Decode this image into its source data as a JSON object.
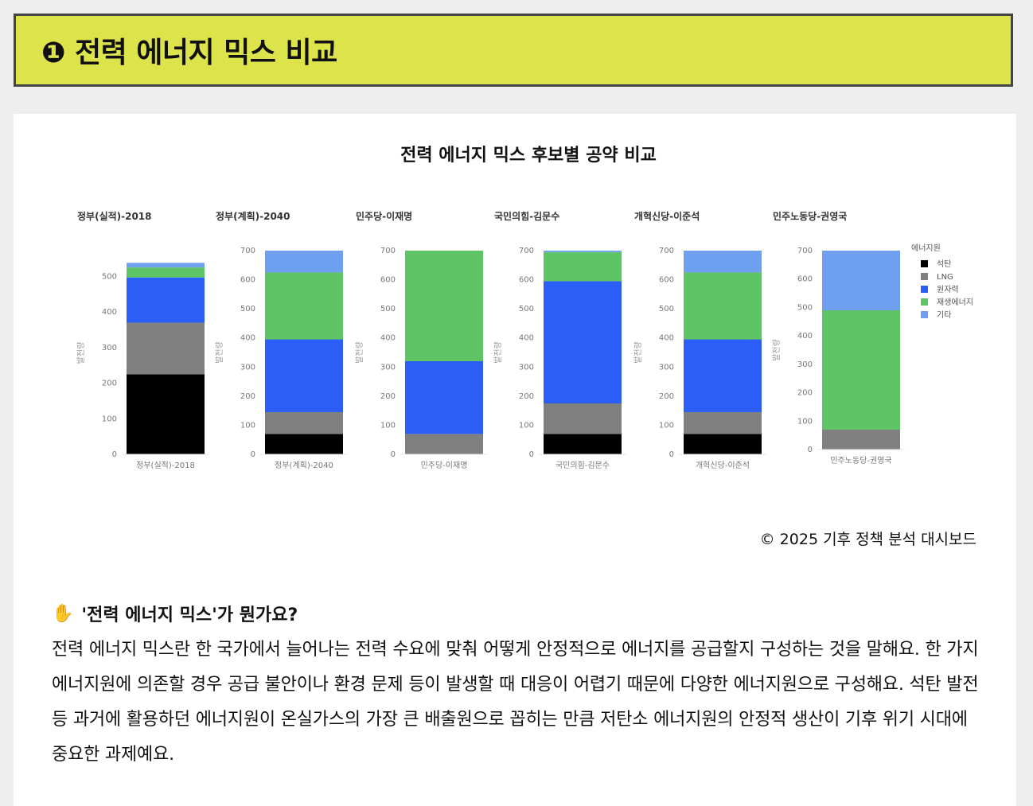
{
  "header": {
    "title": "❶ 전력 에너지 믹스 비교"
  },
  "chart_title": "전력 에너지 믹스 후보별 공약 비교",
  "colors": {
    "석탄": "#000000",
    "LNG": "#808080",
    "원자력": "#2a5ef7",
    "재생에너지": "#5ec466",
    "기타": "#6fa0f0",
    "header_bg": "#dde34a"
  },
  "chart_data": [
    {
      "type": "bar",
      "stacked": true,
      "title": "정부(실적)-2018",
      "categories": [
        "정부(실적)-2018"
      ],
      "ylabel": "발전량",
      "yticks": [
        0,
        100,
        200,
        300,
        400,
        500
      ],
      "ylim": [
        0,
        570
      ],
      "series": [
        {
          "name": "석탄",
          "values": [
            225
          ]
        },
        {
          "name": "LNG",
          "values": [
            145
          ]
        },
        {
          "name": "원자력",
          "values": [
            127
          ]
        },
        {
          "name": "재생에너지",
          "values": [
            28
          ]
        },
        {
          "name": "기타",
          "values": [
            13
          ]
        }
      ]
    },
    {
      "type": "bar",
      "stacked": true,
      "title": "정부(계획)-2040",
      "categories": [
        "정부(계획)-2040"
      ],
      "ylabel": "발전량",
      "yticks": [
        0,
        100,
        200,
        300,
        400,
        500,
        600,
        700
      ],
      "ylim": [
        0,
        700
      ],
      "series": [
        {
          "name": "석탄",
          "values": [
            70
          ]
        },
        {
          "name": "LNG",
          "values": [
            75
          ]
        },
        {
          "name": "원자력",
          "values": [
            250
          ]
        },
        {
          "name": "재생에너지",
          "values": [
            230
          ]
        },
        {
          "name": "기타",
          "values": [
            75
          ]
        }
      ]
    },
    {
      "type": "bar",
      "stacked": true,
      "title": "민주당-이재명",
      "categories": [
        "민주당-이재명"
      ],
      "ylabel": "발전량",
      "yticks": [
        0,
        100,
        200,
        300,
        400,
        500,
        600,
        700
      ],
      "ylim": [
        0,
        700
      ],
      "series": [
        {
          "name": "석탄",
          "values": [
            0
          ]
        },
        {
          "name": "LNG",
          "values": [
            70
          ]
        },
        {
          "name": "원자력",
          "values": [
            250
          ]
        },
        {
          "name": "재생에너지",
          "values": [
            380
          ]
        },
        {
          "name": "기타",
          "values": [
            0
          ]
        }
      ]
    },
    {
      "type": "bar",
      "stacked": true,
      "title": "국민의힘-김문수",
      "categories": [
        "국민의힘-김문수"
      ],
      "ylabel": "발전량",
      "yticks": [
        0,
        100,
        200,
        300,
        400,
        500,
        600,
        700
      ],
      "ylim": [
        0,
        700
      ],
      "series": [
        {
          "name": "석탄",
          "values": [
            70
          ]
        },
        {
          "name": "LNG",
          "values": [
            105
          ]
        },
        {
          "name": "원자력",
          "values": [
            420
          ]
        },
        {
          "name": "재생에너지",
          "values": [
            100
          ]
        },
        {
          "name": "기타",
          "values": [
            5
          ]
        }
      ]
    },
    {
      "type": "bar",
      "stacked": true,
      "title": "개혁신당-이준석",
      "categories": [
        "개혁신당-이준석"
      ],
      "ylabel": "발전량",
      "yticks": [
        0,
        100,
        200,
        300,
        400,
        500,
        600,
        700
      ],
      "ylim": [
        0,
        700
      ],
      "series": [
        {
          "name": "석탄",
          "values": [
            70
          ]
        },
        {
          "name": "LNG",
          "values": [
            75
          ]
        },
        {
          "name": "원자력",
          "values": [
            250
          ]
        },
        {
          "name": "재생에너지",
          "values": [
            230
          ]
        },
        {
          "name": "기타",
          "values": [
            75
          ]
        }
      ]
    },
    {
      "type": "bar",
      "stacked": true,
      "title": "민주노동당-권영국",
      "categories": [
        "민주노동당-권영국"
      ],
      "ylabel": "발전량",
      "yticks": [
        0,
        100,
        200,
        300,
        400,
        500,
        600,
        700
      ],
      "ylim": [
        0,
        700
      ],
      "series": [
        {
          "name": "석탄",
          "values": [
            0
          ]
        },
        {
          "name": "LNG",
          "values": [
            70
          ]
        },
        {
          "name": "원자력",
          "values": [
            0
          ]
        },
        {
          "name": "재생에너지",
          "values": [
            420
          ]
        },
        {
          "name": "기타",
          "values": [
            210
          ]
        }
      ]
    }
  ],
  "legend": {
    "title": "에너지원",
    "items": [
      "석탄",
      "LNG",
      "원자력",
      "재생에너지",
      "기타"
    ],
    "placement": "right"
  },
  "copyright": "© 2025 기후 정책 분석 대시보드",
  "qa": {
    "icon": "✋",
    "title": "'전력 에너지 믹스'가 뭔가요?",
    "body": "전력 에너지 믹스란 한 국가에서 늘어나는 전력 수요에 맞춰 어떻게 안정적으로 에너지를 공급할지 구성하는 것을 말해요. 한 가지 에너지원에 의존할 경우 공급 불안이나 환경 문제 등이 발생할 때 대응이 어렵기 때문에 다양한 에너지원으로 구성해요. 석탄 발전 등 과거에 활용하던 에너지원이 온실가스의 가장 큰 배출원으로 꼽히는 만큼 저탄소 에너지원의 안정적 생산이 기후 위기 시대에 중요한 과제예요."
  }
}
